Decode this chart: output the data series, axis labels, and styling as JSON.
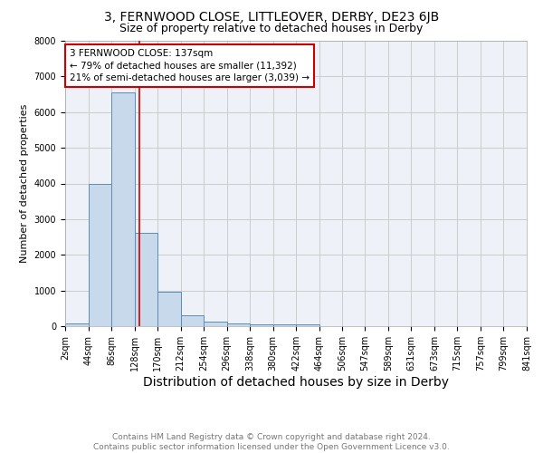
{
  "title1": "3, FERNWOOD CLOSE, LITTLEOVER, DERBY, DE23 6JB",
  "title2": "Size of property relative to detached houses in Derby",
  "xlabel": "Distribution of detached houses by size in Derby",
  "ylabel": "Number of detached properties",
  "bin_edges": [
    2,
    44,
    86,
    128,
    170,
    212,
    254,
    296,
    338,
    380,
    422,
    464,
    506,
    547,
    589,
    631,
    673,
    715,
    757,
    799,
    841
  ],
  "bar_heights": [
    75,
    4000,
    6550,
    2620,
    960,
    310,
    120,
    80,
    55,
    45,
    55,
    0,
    0,
    0,
    0,
    0,
    0,
    0,
    0,
    0
  ],
  "bar_color": "#c9d9ec",
  "bar_edge_color": "#5b8db8",
  "vline_x": 137,
  "vline_color": "#cc0000",
  "annotation_line1": "3 FERNWOOD CLOSE: 137sqm",
  "annotation_line2": "← 79% of detached houses are smaller (11,392)",
  "annotation_line3": "21% of semi-detached houses are larger (3,039) →",
  "annotation_box_color": "#cc0000",
  "ylim": [
    0,
    8000
  ],
  "yticks": [
    0,
    1000,
    2000,
    3000,
    4000,
    5000,
    6000,
    7000,
    8000
  ],
  "grid_color": "#cccccc",
  "bg_color": "#eef2f8",
  "footer_text": "Contains HM Land Registry data © Crown copyright and database right 2024.\nContains public sector information licensed under the Open Government Licence v3.0.",
  "title1_fontsize": 10,
  "title2_fontsize": 9,
  "xlabel_fontsize": 10,
  "ylabel_fontsize": 8,
  "tick_fontsize": 7,
  "annotation_fontsize": 7.5,
  "footer_fontsize": 6.5
}
